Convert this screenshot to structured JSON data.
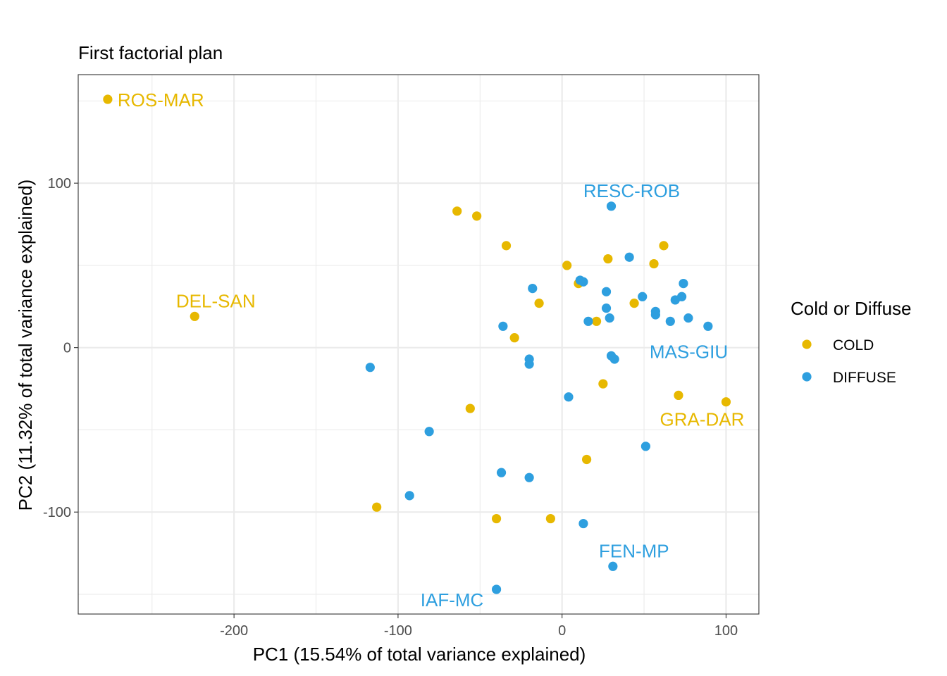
{
  "chart_data": {
    "type": "scatter",
    "title": "First factorial plan",
    "xlabel": "PC1 (15.54% of total variance explained)",
    "ylabel": "PC2 (11.32% of total variance explained)",
    "xlim": [
      -295,
      120
    ],
    "ylim": [
      -162,
      166
    ],
    "x_ticks": [
      -200,
      -100,
      0,
      100
    ],
    "y_ticks": [
      -100,
      0,
      100
    ],
    "x_tick_labels": [
      "-200",
      "-100",
      "0",
      "100"
    ],
    "y_tick_labels": [
      "-100",
      "0",
      "100"
    ],
    "grid": true,
    "legend": {
      "title": "Cold or Diffuse",
      "position": "right",
      "entries": [
        {
          "label": "COLD",
          "color": "#E7B800"
        },
        {
          "label": "DIFFUSE",
          "color": "#2E9FDF"
        }
      ]
    },
    "series": [
      {
        "name": "COLD",
        "color": "#E7B800",
        "points": [
          {
            "x": -277,
            "y": 151,
            "label": "ROS-MAR"
          },
          {
            "x": -224,
            "y": 19,
            "label": "DEL-SAN"
          },
          {
            "x": -64,
            "y": 83
          },
          {
            "x": -52,
            "y": 80
          },
          {
            "x": -34,
            "y": 62
          },
          {
            "x": 3,
            "y": 50
          },
          {
            "x": 28,
            "y": 54
          },
          {
            "x": 56,
            "y": 51
          },
          {
            "x": 62,
            "y": 62
          },
          {
            "x": 10,
            "y": 39
          },
          {
            "x": -14,
            "y": 27
          },
          {
            "x": 44,
            "y": 27
          },
          {
            "x": 21,
            "y": 16
          },
          {
            "x": -29,
            "y": 6
          },
          {
            "x": 25,
            "y": -22
          },
          {
            "x": 71,
            "y": -29
          },
          {
            "x": 100,
            "y": -33,
            "label": "GRA-DAR"
          },
          {
            "x": -56,
            "y": -37
          },
          {
            "x": 15,
            "y": -68
          },
          {
            "x": -113,
            "y": -97
          },
          {
            "x": -40,
            "y": -104
          },
          {
            "x": -7,
            "y": -104
          }
        ]
      },
      {
        "name": "DIFFUSE",
        "color": "#2E9FDF",
        "points": [
          {
            "x": 30,
            "y": 86,
            "label": "RESC-ROB"
          },
          {
            "x": 41,
            "y": 55
          },
          {
            "x": 74,
            "y": 39
          },
          {
            "x": 13,
            "y": 40
          },
          {
            "x": 11,
            "y": 41
          },
          {
            "x": -18,
            "y": 36
          },
          {
            "x": 27,
            "y": 34
          },
          {
            "x": 49,
            "y": 31
          },
          {
            "x": 73,
            "y": 31
          },
          {
            "x": 69,
            "y": 29
          },
          {
            "x": 27,
            "y": 24
          },
          {
            "x": 57,
            "y": 22
          },
          {
            "x": 57,
            "y": 20
          },
          {
            "x": 29,
            "y": 18
          },
          {
            "x": 77,
            "y": 18
          },
          {
            "x": 16,
            "y": 16
          },
          {
            "x": 66,
            "y": 16
          },
          {
            "x": 89,
            "y": 13
          },
          {
            "x": -36,
            "y": 13
          },
          {
            "x": 30,
            "y": -5,
            "label": "MAS-GIU"
          },
          {
            "x": 32,
            "y": -7
          },
          {
            "x": -20,
            "y": -7
          },
          {
            "x": -20,
            "y": -10
          },
          {
            "x": -117,
            "y": -12
          },
          {
            "x": 4,
            "y": -30
          },
          {
            "x": -81,
            "y": -51
          },
          {
            "x": 51,
            "y": -60
          },
          {
            "x": -37,
            "y": -76
          },
          {
            "x": -20,
            "y": -79
          },
          {
            "x": -93,
            "y": -90
          },
          {
            "x": 13,
            "y": -107
          },
          {
            "x": 31,
            "y": -133,
            "label": "FEN-MP"
          },
          {
            "x": -40,
            "y": -147,
            "label": "IAF-MC"
          }
        ]
      }
    ]
  }
}
